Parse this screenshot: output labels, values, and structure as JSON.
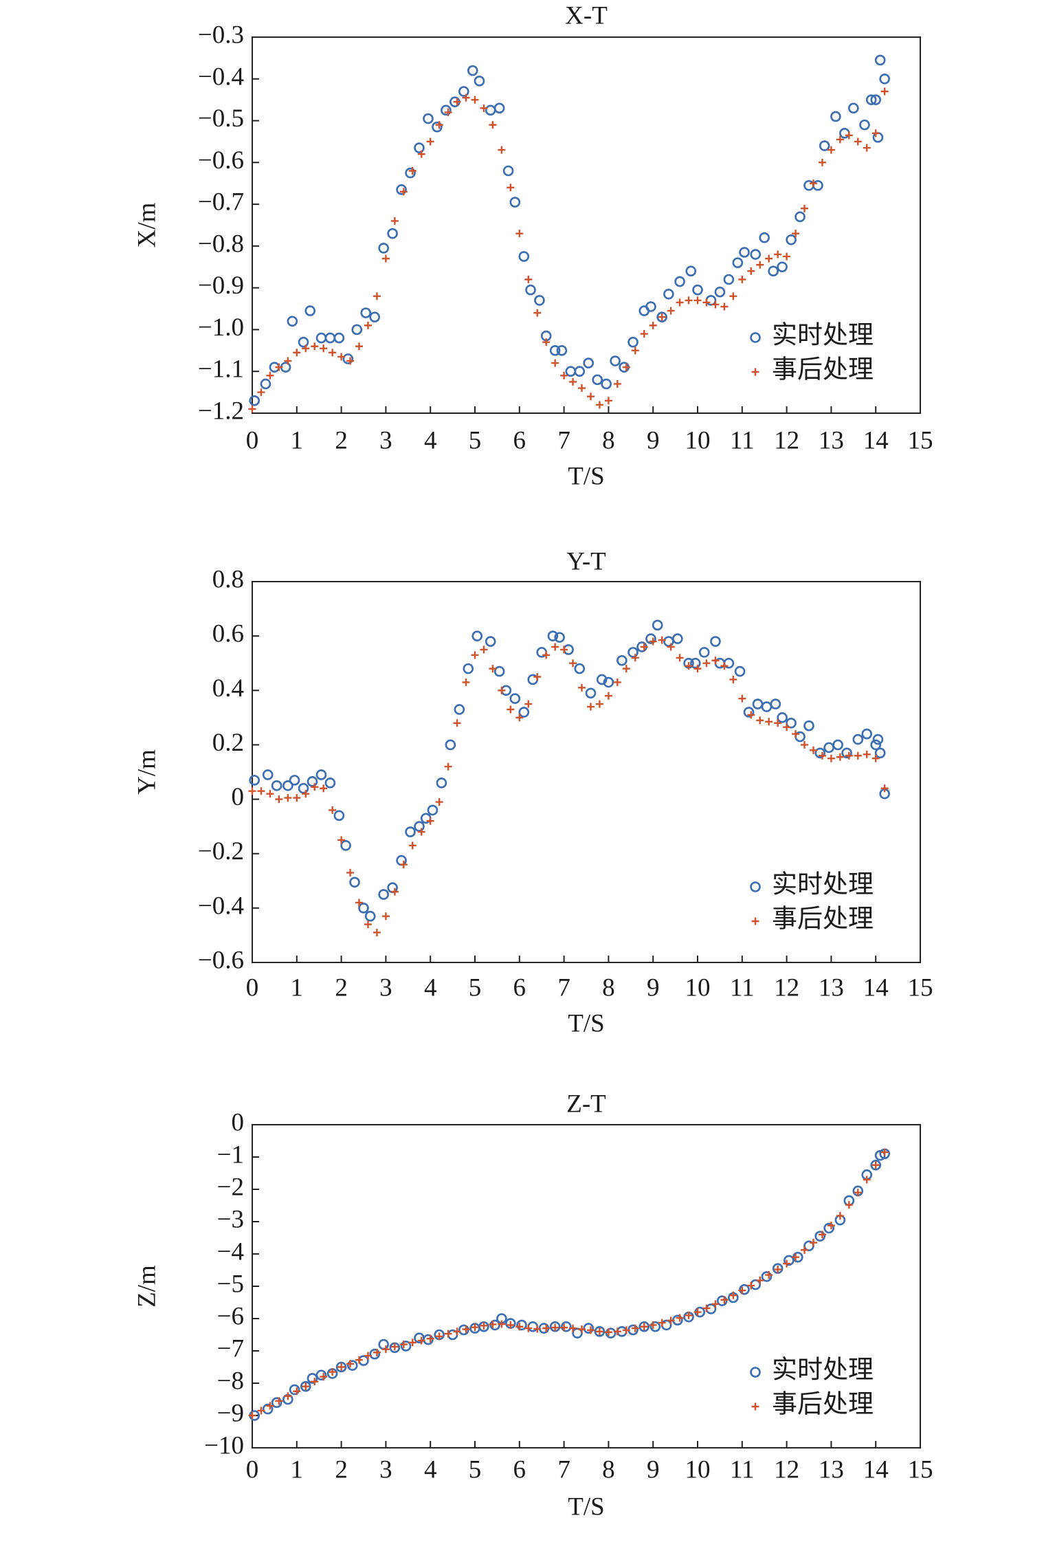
{
  "chart_data": [
    {
      "type": "scatter",
      "title": "X-T",
      "xlabel": "T/S",
      "ylabel": "X/m",
      "xlim": [
        0,
        15
      ],
      "xticks": [
        0,
        1,
        2,
        3,
        4,
        5,
        6,
        7,
        8,
        9,
        10,
        11,
        12,
        13,
        14,
        15
      ],
      "ylim": [
        -1.2,
        -0.3
      ],
      "yticks": [
        {
          "value": -0.3,
          "label": "−0.3"
        },
        {
          "value": -0.4,
          "label": "−0.4"
        },
        {
          "value": -0.5,
          "label": "−0.5"
        },
        {
          "value": -0.6,
          "label": "−0.6"
        },
        {
          "value": -0.7,
          "label": "−0.7"
        },
        {
          "value": -0.8,
          "label": "−0.8"
        },
        {
          "value": -0.9,
          "label": "−0.9"
        },
        {
          "value": -1.0,
          "label": "−1.0"
        },
        {
          "value": -1.1,
          "label": "−1.1"
        },
        {
          "value": -1.2,
          "label": "−1.2"
        }
      ],
      "legend": "lower right",
      "series": [
        {
          "name": "实时处理",
          "color": "#3a6db2",
          "marker": "circle",
          "x": [
            0.05,
            0.3,
            0.5,
            0.75,
            0.9,
            1.15,
            1.3,
            1.55,
            1.75,
            1.95,
            2.15,
            2.35,
            2.55,
            2.75,
            2.95,
            3.15,
            3.35,
            3.55,
            3.75,
            3.95,
            4.15,
            4.35,
            4.55,
            4.75,
            4.95,
            5.1,
            5.35,
            5.55,
            5.75,
            5.9,
            6.1,
            6.25,
            6.45,
            6.6,
            6.8,
            6.95,
            7.15,
            7.35,
            7.55,
            7.75,
            7.95,
            8.15,
            8.35,
            8.55,
            8.8,
            8.95,
            9.2,
            9.35,
            9.6,
            9.85,
            10.0,
            10.3,
            10.5,
            10.7,
            10.9,
            11.05,
            11.3,
            11.5,
            11.7,
            11.9,
            12.1,
            12.3,
            12.5,
            12.7,
            12.85,
            13.1,
            13.3,
            13.5,
            13.75,
            13.9,
            14.0,
            14.05,
            14.1,
            14.2
          ],
          "values": [
            -1.17,
            -1.13,
            -1.09,
            -1.09,
            -0.98,
            -1.03,
            -0.955,
            -1.02,
            -1.02,
            -1.02,
            -1.07,
            -1.0,
            -0.96,
            -0.97,
            -0.805,
            -0.77,
            -0.665,
            -0.625,
            -0.565,
            -0.495,
            -0.515,
            -0.475,
            -0.455,
            -0.43,
            -0.38,
            -0.405,
            -0.475,
            -0.47,
            -0.62,
            -0.695,
            -0.825,
            -0.905,
            -0.93,
            -1.015,
            -1.05,
            -1.05,
            -1.1,
            -1.1,
            -1.08,
            -1.12,
            -1.13,
            -1.075,
            -1.09,
            -1.03,
            -0.955,
            -0.945,
            -0.97,
            -0.915,
            -0.885,
            -0.86,
            -0.905,
            -0.93,
            -0.91,
            -0.88,
            -0.84,
            -0.815,
            -0.82,
            -0.78,
            -0.86,
            -0.85,
            -0.785,
            -0.73,
            -0.655,
            -0.655,
            -0.56,
            -0.49,
            -0.53,
            -0.47,
            -0.51,
            -0.45,
            -0.45,
            -0.54,
            -0.355,
            -0.4
          ]
        },
        {
          "name": "事后处理",
          "color": "#d0512a",
          "marker": "plus",
          "x": [
            0,
            0.2,
            0.4,
            0.6,
            0.8,
            1.0,
            1.2,
            1.4,
            1.6,
            1.8,
            2.0,
            2.2,
            2.4,
            2.6,
            2.8,
            3.0,
            3.2,
            3.4,
            3.6,
            3.8,
            4.0,
            4.2,
            4.4,
            4.6,
            4.8,
            5.0,
            5.2,
            5.4,
            5.6,
            5.8,
            6.0,
            6.2,
            6.4,
            6.6,
            6.8,
            7.0,
            7.2,
            7.4,
            7.6,
            7.8,
            8.0,
            8.2,
            8.4,
            8.6,
            8.8,
            9.0,
            9.2,
            9.4,
            9.6,
            9.8,
            10.0,
            10.2,
            10.4,
            10.6,
            10.8,
            11.0,
            11.2,
            11.4,
            11.6,
            11.8,
            12.0,
            12.2,
            12.4,
            12.6,
            12.8,
            13.0,
            13.2,
            13.4,
            13.6,
            13.8,
            14.0,
            14.2
          ],
          "values": [
            -1.19,
            -1.15,
            -1.11,
            -1.09,
            -1.075,
            -1.055,
            -1.045,
            -1.04,
            -1.045,
            -1.055,
            -1.065,
            -1.075,
            -1.04,
            -0.99,
            -0.92,
            -0.83,
            -0.74,
            -0.67,
            -0.62,
            -0.58,
            -0.55,
            -0.51,
            -0.48,
            -0.455,
            -0.445,
            -0.45,
            -0.47,
            -0.51,
            -0.57,
            -0.66,
            -0.77,
            -0.88,
            -0.96,
            -1.03,
            -1.08,
            -1.11,
            -1.125,
            -1.14,
            -1.16,
            -1.18,
            -1.17,
            -1.13,
            -1.09,
            -1.05,
            -1.01,
            -0.99,
            -0.97,
            -0.955,
            -0.935,
            -0.93,
            -0.93,
            -0.935,
            -0.94,
            -0.945,
            -0.92,
            -0.88,
            -0.86,
            -0.845,
            -0.83,
            -0.82,
            -0.825,
            -0.77,
            -0.71,
            -0.65,
            -0.6,
            -0.57,
            -0.545,
            -0.535,
            -0.55,
            -0.565,
            -0.53,
            -0.43
          ]
        }
      ]
    },
    {
      "type": "scatter",
      "title": "Y-T",
      "xlabel": "T/S",
      "ylabel": "Y/m",
      "xlim": [
        0,
        15
      ],
      "xticks": [
        0,
        1,
        2,
        3,
        4,
        5,
        6,
        7,
        8,
        9,
        10,
        11,
        12,
        13,
        14,
        15
      ],
      "ylim": [
        -0.6,
        0.8
      ],
      "yticks": [
        0.8,
        0.6,
        0.4,
        0.2,
        0,
        {
          "value": -0.2,
          "label": "−0.2"
        },
        {
          "value": -0.4,
          "label": "−0.4"
        },
        {
          "value": -0.6,
          "label": "−0.6"
        }
      ],
      "legend": "lower right",
      "series": [
        {
          "name": "实时处理",
          "color": "#3a6db2",
          "marker": "circle",
          "x": [
            0.05,
            0.35,
            0.55,
            0.8,
            0.95,
            1.15,
            1.35,
            1.55,
            1.75,
            1.95,
            2.1,
            2.3,
            2.5,
            2.65,
            2.95,
            3.15,
            3.35,
            3.55,
            3.75,
            3.9,
            4.05,
            4.25,
            4.45,
            4.65,
            4.85,
            5.05,
            5.35,
            5.55,
            5.7,
            5.9,
            6.1,
            6.3,
            6.5,
            6.75,
            6.9,
            7.1,
            7.35,
            7.6,
            7.85,
            8.0,
            8.3,
            8.55,
            8.75,
            8.95,
            9.1,
            9.35,
            9.55,
            9.8,
            9.95,
            10.15,
            10.4,
            10.5,
            10.7,
            10.95,
            11.15,
            11.35,
            11.55,
            11.75,
            11.9,
            12.1,
            12.3,
            12.5,
            12.75,
            12.95,
            13.15,
            13.35,
            13.6,
            13.8,
            14.0,
            14.05,
            14.1,
            14.2
          ],
          "values": [
            0.07,
            0.09,
            0.05,
            0.05,
            0.07,
            0.04,
            0.065,
            0.09,
            0.06,
            -0.06,
            -0.17,
            -0.305,
            -0.4,
            -0.43,
            -0.35,
            -0.325,
            -0.225,
            -0.12,
            -0.1,
            -0.07,
            -0.04,
            0.06,
            0.2,
            0.33,
            0.48,
            0.6,
            0.58,
            0.47,
            0.4,
            0.37,
            0.32,
            0.44,
            0.54,
            0.6,
            0.595,
            0.55,
            0.48,
            0.39,
            0.44,
            0.43,
            0.51,
            0.54,
            0.56,
            0.59,
            0.64,
            0.58,
            0.59,
            0.5,
            0.5,
            0.54,
            0.58,
            0.5,
            0.5,
            0.47,
            0.32,
            0.35,
            0.34,
            0.35,
            0.3,
            0.28,
            0.23,
            0.27,
            0.17,
            0.19,
            0.2,
            0.17,
            0.22,
            0.24,
            0.2,
            0.22,
            0.17,
            0.02
          ]
        },
        {
          "name": "事后处理",
          "color": "#d0512a",
          "marker": "plus",
          "x": [
            0,
            0.2,
            0.4,
            0.6,
            0.8,
            1.0,
            1.2,
            1.4,
            1.6,
            1.8,
            2.0,
            2.2,
            2.4,
            2.6,
            2.8,
            3.0,
            3.2,
            3.4,
            3.6,
            3.8,
            4.0,
            4.2,
            4.4,
            4.6,
            4.8,
            5.0,
            5.2,
            5.4,
            5.6,
            5.8,
            6.0,
            6.2,
            6.4,
            6.6,
            6.8,
            7.0,
            7.2,
            7.4,
            7.6,
            7.8,
            8.0,
            8.2,
            8.4,
            8.6,
            8.8,
            9.0,
            9.2,
            9.4,
            9.6,
            9.8,
            10.0,
            10.2,
            10.4,
            10.6,
            10.8,
            11.0,
            11.2,
            11.4,
            11.6,
            11.8,
            12.0,
            12.2,
            12.4,
            12.6,
            12.8,
            13.0,
            13.2,
            13.4,
            13.6,
            13.8,
            14.0,
            14.2
          ],
          "values": [
            0.03,
            0.03,
            0.02,
            0.0,
            0.005,
            0.005,
            0.02,
            0.045,
            0.04,
            -0.04,
            -0.15,
            -0.27,
            -0.38,
            -0.46,
            -0.49,
            -0.43,
            -0.34,
            -0.24,
            -0.17,
            -0.12,
            -0.08,
            -0.01,
            0.12,
            0.28,
            0.43,
            0.53,
            0.55,
            0.48,
            0.4,
            0.33,
            0.3,
            0.35,
            0.45,
            0.53,
            0.56,
            0.55,
            0.5,
            0.41,
            0.34,
            0.35,
            0.38,
            0.43,
            0.48,
            0.52,
            0.56,
            0.58,
            0.585,
            0.56,
            0.52,
            0.49,
            0.48,
            0.5,
            0.51,
            0.49,
            0.44,
            0.37,
            0.31,
            0.29,
            0.285,
            0.28,
            0.265,
            0.24,
            0.2,
            0.18,
            0.16,
            0.15,
            0.155,
            0.16,
            0.16,
            0.165,
            0.15,
            0.04
          ]
        }
      ]
    },
    {
      "type": "scatter",
      "title": "Z-T",
      "xlabel": "T/S",
      "ylabel": "Z/m",
      "xlim": [
        0,
        15
      ],
      "xticks": [
        0,
        1,
        2,
        3,
        4,
        5,
        6,
        7,
        8,
        9,
        10,
        11,
        12,
        13,
        14,
        15
      ],
      "ylim": [
        -10,
        0
      ],
      "yticks": [
        0,
        {
          "value": -1,
          "label": "−1"
        },
        {
          "value": -2,
          "label": "−2"
        },
        {
          "value": -3,
          "label": "−3"
        },
        {
          "value": -4,
          "label": "−4"
        },
        {
          "value": -5,
          "label": "−5"
        },
        {
          "value": -6,
          "label": "−6"
        },
        {
          "value": -7,
          "label": "−7"
        },
        {
          "value": -8,
          "label": "−8"
        },
        {
          "value": -9,
          "label": "−9"
        },
        {
          "value": -10,
          "label": "−10"
        }
      ],
      "legend": "lower right",
      "series": [
        {
          "name": "实时处理",
          "color": "#3a6db2",
          "marker": "circle",
          "x": [
            0.05,
            0.35,
            0.55,
            0.8,
            0.95,
            1.2,
            1.35,
            1.55,
            1.8,
            2.0,
            2.25,
            2.5,
            2.75,
            2.95,
            3.2,
            3.45,
            3.75,
            3.95,
            4.2,
            4.5,
            4.75,
            5.0,
            5.2,
            5.45,
            5.6,
            5.8,
            6.05,
            6.3,
            6.55,
            6.8,
            7.05,
            7.3,
            7.55,
            7.8,
            8.05,
            8.3,
            8.55,
            8.8,
            9.05,
            9.3,
            9.55,
            9.8,
            10.05,
            10.3,
            10.55,
            10.8,
            11.05,
            11.3,
            11.55,
            11.8,
            12.05,
            12.25,
            12.5,
            12.75,
            12.95,
            13.2,
            13.4,
            13.6,
            13.8,
            14.0,
            14.1,
            14.2
          ],
          "values": [
            -9.0,
            -8.8,
            -8.6,
            -8.5,
            -8.2,
            -8.1,
            -7.85,
            -7.75,
            -7.7,
            -7.5,
            -7.45,
            -7.3,
            -7.1,
            -6.8,
            -6.9,
            -6.85,
            -6.6,
            -6.65,
            -6.5,
            -6.5,
            -6.35,
            -6.3,
            -6.25,
            -6.2,
            -6.0,
            -6.15,
            -6.2,
            -6.25,
            -6.3,
            -6.25,
            -6.25,
            -6.45,
            -6.3,
            -6.4,
            -6.45,
            -6.4,
            -6.35,
            -6.25,
            -6.25,
            -6.2,
            -6.05,
            -5.95,
            -5.8,
            -5.7,
            -5.45,
            -5.35,
            -5.1,
            -4.95,
            -4.7,
            -4.45,
            -4.2,
            -4.1,
            -3.75,
            -3.45,
            -3.2,
            -2.95,
            -2.35,
            -2.05,
            -1.55,
            -1.25,
            -0.95,
            -0.9
          ]
        },
        {
          "name": "事后处理",
          "color": "#d0512a",
          "marker": "plus",
          "x": [
            0,
            0.2,
            0.4,
            0.6,
            0.8,
            1.0,
            1.2,
            1.4,
            1.6,
            1.8,
            2.0,
            2.2,
            2.4,
            2.6,
            2.8,
            3.0,
            3.2,
            3.4,
            3.6,
            3.8,
            4.0,
            4.2,
            4.4,
            4.6,
            4.8,
            5.0,
            5.2,
            5.4,
            5.6,
            5.8,
            6.0,
            6.2,
            6.4,
            6.6,
            6.8,
            7.0,
            7.2,
            7.4,
            7.6,
            7.8,
            8.0,
            8.2,
            8.4,
            8.6,
            8.8,
            9.0,
            9.2,
            9.4,
            9.6,
            9.8,
            10.0,
            10.2,
            10.4,
            10.6,
            10.8,
            11.0,
            11.2,
            11.4,
            11.6,
            11.8,
            12.0,
            12.2,
            12.4,
            12.6,
            12.8,
            13.0,
            13.2,
            13.4,
            13.6,
            13.8,
            14.0,
            14.2
          ],
          "values": [
            -9.0,
            -8.85,
            -8.7,
            -8.55,
            -8.4,
            -8.25,
            -8.1,
            -7.95,
            -7.8,
            -7.65,
            -7.5,
            -7.4,
            -7.28,
            -7.15,
            -7.05,
            -6.95,
            -6.87,
            -6.8,
            -6.74,
            -6.68,
            -6.62,
            -6.55,
            -6.47,
            -6.4,
            -6.33,
            -6.27,
            -6.22,
            -6.18,
            -6.17,
            -6.2,
            -6.25,
            -6.3,
            -6.32,
            -6.3,
            -6.28,
            -6.28,
            -6.3,
            -6.33,
            -6.36,
            -6.4,
            -6.42,
            -6.4,
            -6.36,
            -6.3,
            -6.25,
            -6.2,
            -6.13,
            -6.06,
            -5.98,
            -5.9,
            -5.8,
            -5.68,
            -5.55,
            -5.42,
            -5.28,
            -5.13,
            -4.98,
            -4.82,
            -4.65,
            -4.48,
            -4.3,
            -4.1,
            -3.88,
            -3.65,
            -3.4,
            -3.12,
            -2.82,
            -2.48,
            -2.1,
            -1.7,
            -1.25,
            -0.85
          ]
        }
      ]
    }
  ]
}
